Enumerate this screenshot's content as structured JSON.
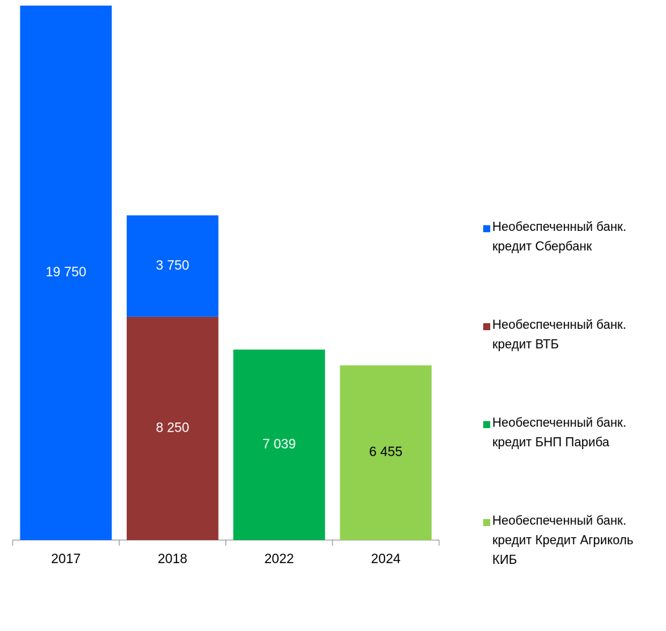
{
  "chart_data": {
    "type": "stacked_bar",
    "categories": [
      "2017",
      "2018",
      "2022",
      "2024"
    ],
    "series": [
      {
        "name": "Необеспеченный банк. кредит Сбербанк",
        "color": "#0066ff",
        "label_color": "#ffffff",
        "values": [
          19750,
          3750,
          null,
          null
        ],
        "value_labels": [
          "19 750",
          "3 750",
          null,
          null
        ]
      },
      {
        "name": "Необеспеченный банк. кредит ВТБ",
        "color": "#943634",
        "label_color": "#ffffff",
        "values": [
          null,
          8250,
          null,
          null
        ],
        "value_labels": [
          null,
          "8 250",
          null,
          null
        ]
      },
      {
        "name": "Необеспеченный банк. кредит БНП Париба",
        "color": "#00b050",
        "label_color": "#ffffff",
        "values": [
          null,
          null,
          7039,
          null
        ],
        "value_labels": [
          null,
          null,
          "7 039",
          null
        ]
      },
      {
        "name": "Необеспеченный банк. кредит Кредит Агриколь КИБ",
        "color": "#92d050",
        "label_color": "#000000",
        "values": [
          null,
          null,
          null,
          6455
        ],
        "value_labels": [
          null,
          null,
          null,
          "6 455"
        ]
      }
    ],
    "legend": "right"
  }
}
